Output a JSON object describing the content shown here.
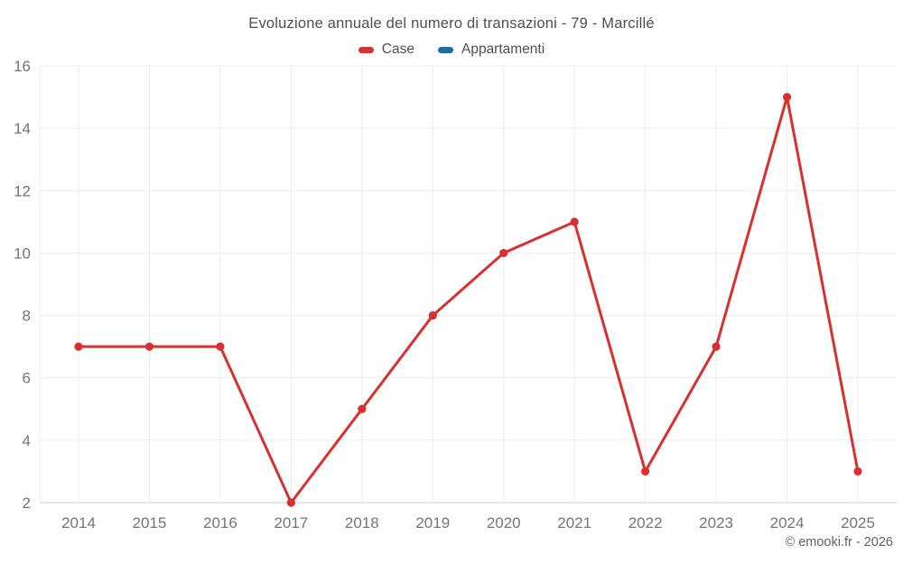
{
  "title": "Evoluzione annuale del numero di transazioni - 79 - Marcillé",
  "legend": {
    "items": [
      {
        "label": "Case",
        "color": "#d7302f"
      },
      {
        "label": "Appartamenti",
        "color": "#1c6ea4"
      }
    ]
  },
  "footer": {
    "text": "© emooki.fr - 2026"
  },
  "chart_data": {
    "type": "line",
    "title": "Evoluzione annuale del numero di transazioni - 79 - Marcillé",
    "categories": [
      "2014",
      "2015",
      "2016",
      "2017",
      "2018",
      "2019",
      "2020",
      "2021",
      "2022",
      "2023",
      "2024",
      "2025"
    ],
    "series": [
      {
        "name": "Case",
        "color": "#d7302f",
        "values": [
          7,
          7,
          7,
          2,
          5,
          8,
          10,
          11,
          3,
          7,
          15,
          3
        ],
        "visible": true
      },
      {
        "name": "Appartamenti",
        "color": "#1c6ea4",
        "values": [],
        "visible": false
      }
    ],
    "xlabel": "",
    "ylabel": "",
    "ylim": [
      2,
      16
    ],
    "yticks": [
      2,
      4,
      6,
      8,
      10,
      12,
      14,
      16
    ],
    "grid": true,
    "legend_position": "top",
    "colors": {
      "gridline": "#ececec",
      "axis_line": "#cccccc",
      "tick_label": "#757575"
    }
  }
}
